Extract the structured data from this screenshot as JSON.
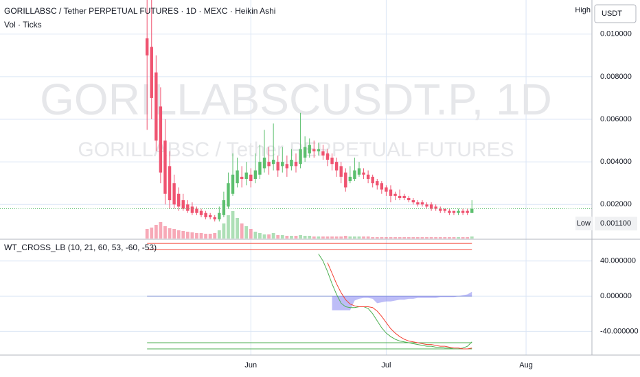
{
  "chart_data": [
    {
      "type": "candlestick",
      "title": "GORILLABSC / Tether PERPETUAL FUTURES · 1D · MEXC · Heikin Ashi",
      "subtitle": "Vol · Ticks",
      "watermark": [
        "GORILLABSCUSDT.P, 1D",
        "GORILLABSC / Tether PERPETUAL FUTURES"
      ],
      "currency": "USDT",
      "high_label": "High",
      "low_label": "Low",
      "low_marker": {
        "value": 0.0011,
        "label": "0.001100"
      },
      "up_color": "#5cbf6e",
      "down_color": "#ef5370",
      "open": [
        0.0098,
        0.0094,
        0.0082,
        0.0066,
        0.005,
        0.0038,
        0.003,
        0.0025,
        0.0022,
        0.002,
        0.0019,
        0.0018,
        0.0017,
        0.0016,
        0.0015,
        0.0014,
        0.0013,
        0.0015,
        0.0019,
        0.0025,
        0.003,
        0.0033,
        0.0032,
        0.0034,
        0.0032,
        0.0034,
        0.0037,
        0.004,
        0.0039,
        0.004,
        0.0038,
        0.0039,
        0.0038,
        0.004,
        0.0039,
        0.0042,
        0.0044,
        0.0046,
        0.0045,
        0.0045,
        0.0044,
        0.0042,
        0.004,
        0.0038,
        0.0035,
        0.0031,
        0.0032,
        0.0034,
        0.0035,
        0.0034,
        0.0033,
        0.0031,
        0.003,
        0.0028,
        0.0027,
        0.0025,
        0.0024,
        0.0024,
        0.0023,
        0.0022,
        0.0021,
        0.0021,
        0.002,
        0.002,
        0.0019,
        0.0018,
        0.0018,
        0.0017,
        0.0017,
        0.0016,
        0.0017,
        0.0017,
        0.0016
      ],
      "high": [
        0.0116,
        0.0116,
        0.009,
        0.0075,
        0.006,
        0.0045,
        0.0034,
        0.0028,
        0.0025,
        0.0022,
        0.0021,
        0.0019,
        0.0018,
        0.0017,
        0.0016,
        0.0015,
        0.0019,
        0.0026,
        0.0035,
        0.0044,
        0.0042,
        0.0038,
        0.004,
        0.0037,
        0.0044,
        0.0048,
        0.0055,
        0.0047,
        0.0058,
        0.0043,
        0.0047,
        0.0043,
        0.0046,
        0.0044,
        0.0063,
        0.0052,
        0.0051,
        0.005,
        0.0049,
        0.0048,
        0.0046,
        0.0044,
        0.0042,
        0.004,
        0.0037,
        0.0038,
        0.0042,
        0.004,
        0.0037,
        0.0036,
        0.0034,
        0.0032,
        0.0031,
        0.0029,
        0.0029,
        0.0026,
        0.0027,
        0.0025,
        0.0024,
        0.0023,
        0.0022,
        0.0022,
        0.0021,
        0.0021,
        0.002,
        0.0019,
        0.0018,
        0.0018,
        0.0017,
        0.0018,
        0.0018,
        0.0018,
        0.0022
      ],
      "low": [
        0.0055,
        0.006,
        0.0045,
        0.003,
        0.002,
        0.0018,
        0.0018,
        0.0017,
        0.0017,
        0.0016,
        0.0015,
        0.0015,
        0.0014,
        0.0013,
        0.0013,
        0.0012,
        0.0012,
        0.0014,
        0.0018,
        0.0024,
        0.0028,
        0.0028,
        0.0029,
        0.0028,
        0.003,
        0.0032,
        0.0035,
        0.0034,
        0.0036,
        0.0033,
        0.0035,
        0.0033,
        0.0036,
        0.0035,
        0.0037,
        0.004,
        0.0042,
        0.0042,
        0.0043,
        0.0041,
        0.0038,
        0.0036,
        0.0033,
        0.003,
        0.0026,
        0.003,
        0.0031,
        0.0033,
        0.0032,
        0.003,
        0.0028,
        0.0027,
        0.0025,
        0.0024,
        0.0021,
        0.0022,
        0.0022,
        0.0022,
        0.0021,
        0.002,
        0.0019,
        0.0019,
        0.0018,
        0.0017,
        0.0017,
        0.0016,
        0.0016,
        0.0015,
        0.0015,
        0.0015,
        0.0015,
        0.0015,
        0.0016
      ],
      "close": [
        0.009,
        0.007,
        0.005,
        0.0035,
        0.0025,
        0.0022,
        0.002,
        0.0019,
        0.0018,
        0.0017,
        0.0016,
        0.0016,
        0.0015,
        0.0014,
        0.0014,
        0.0013,
        0.0016,
        0.0022,
        0.003,
        0.0034,
        0.0036,
        0.0032,
        0.0035,
        0.0031,
        0.0036,
        0.004,
        0.0042,
        0.0038,
        0.0041,
        0.0036,
        0.004,
        0.0037,
        0.0041,
        0.0038,
        0.0046,
        0.0047,
        0.0048,
        0.0045,
        0.0046,
        0.0043,
        0.0041,
        0.0039,
        0.0036,
        0.0033,
        0.0028,
        0.0033,
        0.0036,
        0.0037,
        0.0034,
        0.0032,
        0.003,
        0.0029,
        0.0027,
        0.0026,
        0.0024,
        0.0024,
        0.0023,
        0.0023,
        0.0022,
        0.0021,
        0.002,
        0.002,
        0.0019,
        0.0018,
        0.0018,
        0.0017,
        0.0017,
        0.0016,
        0.0016,
        0.0017,
        0.0016,
        0.0016,
        0.0018
      ],
      "volume": [
        14,
        16,
        20,
        24,
        18,
        15,
        14,
        12,
        11,
        10,
        9,
        8,
        8,
        7,
        7,
        8,
        12,
        22,
        34,
        40,
        30,
        22,
        18,
        14,
        10,
        8,
        6,
        6,
        8,
        5,
        5,
        4,
        4,
        4,
        5,
        4,
        4,
        3,
        3,
        3,
        3,
        3,
        3,
        3,
        4,
        3,
        3,
        3,
        3,
        3,
        2,
        2,
        2,
        2,
        2,
        2,
        2,
        2,
        2,
        2,
        2,
        2,
        2,
        2,
        2,
        2,
        2,
        2,
        2,
        2,
        2,
        2,
        3
      ],
      "ylim": [
        0.0004,
        0.0116
      ],
      "yticks": [
        {
          "value": 0.002,
          "label": "0.002000"
        },
        {
          "value": 0.004,
          "label": "0.004000"
        },
        {
          "value": 0.006,
          "label": "0.006000"
        },
        {
          "value": 0.008,
          "label": "0.008000"
        },
        {
          "value": 0.01,
          "label": "0.010000"
        }
      ],
      "xlim": [
        -32.6,
        98.6
      ],
      "xticks": [
        {
          "value": 23,
          "label": "Jun"
        },
        {
          "value": 53,
          "label": "Jul"
        },
        {
          "value": 84,
          "label": "Aug"
        }
      ],
      "grid": true
    },
    {
      "type": "line",
      "title": "WT_CROSS_LB (10, 21, 60, 53, -60, -53)",
      "series": [
        {
          "color": "#4caf50",
          "values": [
            null,
            null,
            null,
            null,
            null,
            null,
            null,
            null,
            null,
            null,
            null,
            null,
            null,
            null,
            null,
            null,
            null,
            null,
            null,
            null,
            null,
            null,
            null,
            null,
            null,
            null,
            null,
            null,
            null,
            null,
            null,
            null,
            null,
            null,
            null,
            null,
            null,
            null,
            48,
            40,
            28,
            14,
            2,
            -8,
            -12,
            -13,
            -13,
            -12,
            -12,
            -14,
            -20,
            -28,
            -36,
            -42,
            -46,
            -49,
            -51,
            -52,
            -53,
            -54,
            -55,
            -56,
            -57,
            -57,
            -58,
            -58,
            -59,
            -59,
            -60,
            -60,
            -59,
            -57,
            -52
          ]
        },
        {
          "color": "#f44336",
          "values": [
            null,
            null,
            null,
            null,
            null,
            null,
            null,
            null,
            null,
            null,
            null,
            null,
            null,
            null,
            null,
            null,
            null,
            null,
            null,
            null,
            null,
            null,
            null,
            null,
            null,
            null,
            null,
            null,
            null,
            null,
            null,
            null,
            null,
            null,
            null,
            null,
            null,
            null,
            null,
            null,
            38,
            26,
            14,
            4,
            -4,
            -9,
            -11,
            -12,
            -12,
            -12,
            -13,
            -17,
            -23,
            -30,
            -37,
            -42,
            -46,
            -49,
            -51,
            -52,
            -53,
            -54,
            -55,
            -55,
            -56,
            -57,
            -57,
            -58,
            -59,
            -59,
            -60,
            -60,
            -59
          ]
        }
      ],
      "histogram": {
        "color": "#7b7bf0",
        "values": [
          null,
          null,
          null,
          null,
          null,
          null,
          null,
          null,
          null,
          null,
          null,
          null,
          null,
          null,
          null,
          null,
          null,
          null,
          null,
          null,
          null,
          null,
          null,
          null,
          null,
          null,
          null,
          null,
          null,
          null,
          null,
          null,
          null,
          null,
          null,
          null,
          null,
          null,
          null,
          null,
          null,
          -16,
          -16,
          -16,
          -16,
          -16,
          -5,
          -3,
          -2,
          -2,
          -3,
          -8,
          -7,
          -6,
          -6,
          -5,
          -4,
          -4,
          -3,
          -3,
          -2,
          -2,
          -2,
          -2,
          -2,
          -1,
          -1,
          -1,
          -1,
          0,
          1,
          2,
          5
        ]
      },
      "levels": [
        {
          "value": 60,
          "color": "#f44336"
        },
        {
          "value": 53,
          "color": "#f44336"
        },
        {
          "value": -60,
          "color": "#4caf50"
        },
        {
          "value": -53,
          "color": "#4caf50"
        },
        {
          "value": 0,
          "color": "#8fa0d8"
        }
      ],
      "ylim": [
        -67,
        64
      ],
      "yticks": [
        {
          "value": -40,
          "label": "-40.000000"
        },
        {
          "value": 0,
          "label": "0.000000"
        },
        {
          "value": 40,
          "label": "40.000000"
        }
      ],
      "grid": true
    }
  ]
}
